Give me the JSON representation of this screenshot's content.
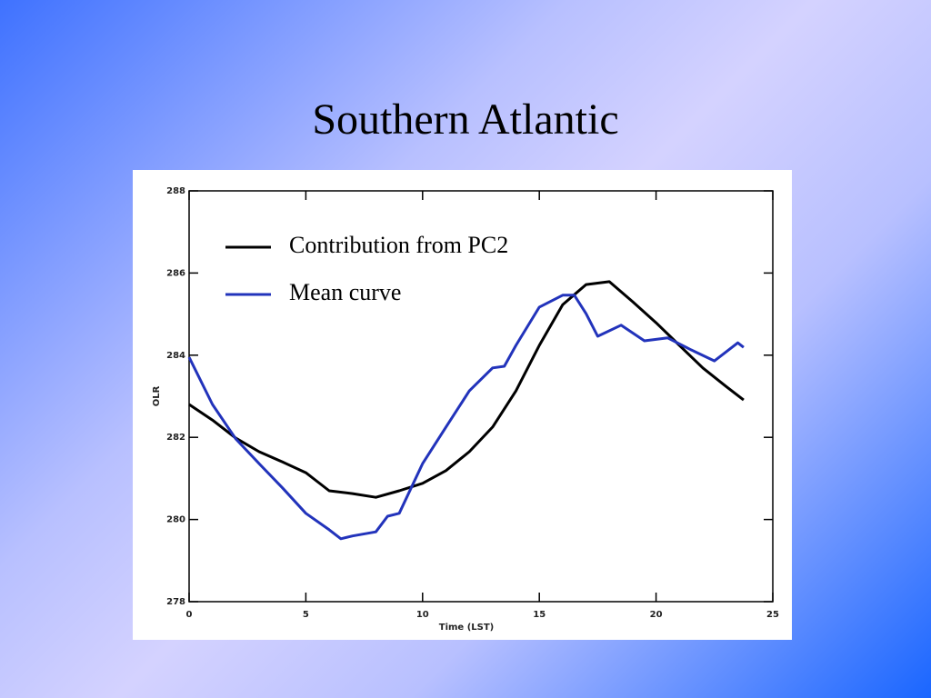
{
  "chart_data": {
    "type": "line",
    "title": "Southern Atlantic",
    "xlabel": "Time (LST)",
    "ylabel": "OLR",
    "xlim": [
      0,
      25
    ],
    "xticks": [
      0,
      5,
      10,
      15,
      20,
      25
    ],
    "ylim": [
      278,
      288
    ],
    "yticks": [
      278,
      280,
      282,
      284,
      286,
      288
    ],
    "series": [
      {
        "name": "Contribution from PC2",
        "color": "#000000",
        "x": [
          0,
          1,
          2,
          3,
          4,
          5,
          5.5,
          6,
          7,
          8,
          9,
          10,
          11,
          12,
          13,
          14,
          15,
          16,
          17,
          18,
          19,
          20,
          21,
          22,
          23,
          23.75
        ],
        "values": [
          282.8,
          282.42,
          281.98,
          281.65,
          281.4,
          281.14,
          280.92,
          280.7,
          280.63,
          280.54,
          280.7,
          280.88,
          281.19,
          281.65,
          282.25,
          283.13,
          284.24,
          285.23,
          285.72,
          285.79,
          285.3,
          284.79,
          284.24,
          283.69,
          283.24,
          282.91
        ]
      },
      {
        "name": "Mean curve",
        "color": "#2233bb",
        "x": [
          0,
          1,
          2,
          3,
          4,
          5,
          6,
          6.5,
          7,
          8,
          8.5,
          9,
          10,
          11,
          12,
          13,
          13.5,
          14,
          15,
          16,
          16.5,
          17,
          17.5,
          18.5,
          19.5,
          20.5,
          21.5,
          22.5,
          23,
          23.5,
          23.75
        ],
        "values": [
          283.95,
          282.8,
          281.96,
          281.36,
          280.77,
          280.15,
          279.75,
          279.53,
          279.6,
          279.7,
          280.08,
          280.15,
          281.36,
          282.25,
          283.13,
          283.69,
          283.73,
          284.24,
          285.17,
          285.46,
          285.46,
          285.01,
          284.46,
          284.73,
          284.35,
          284.42,
          284.13,
          283.86,
          284.08,
          284.3,
          284.19
        ]
      }
    ]
  }
}
